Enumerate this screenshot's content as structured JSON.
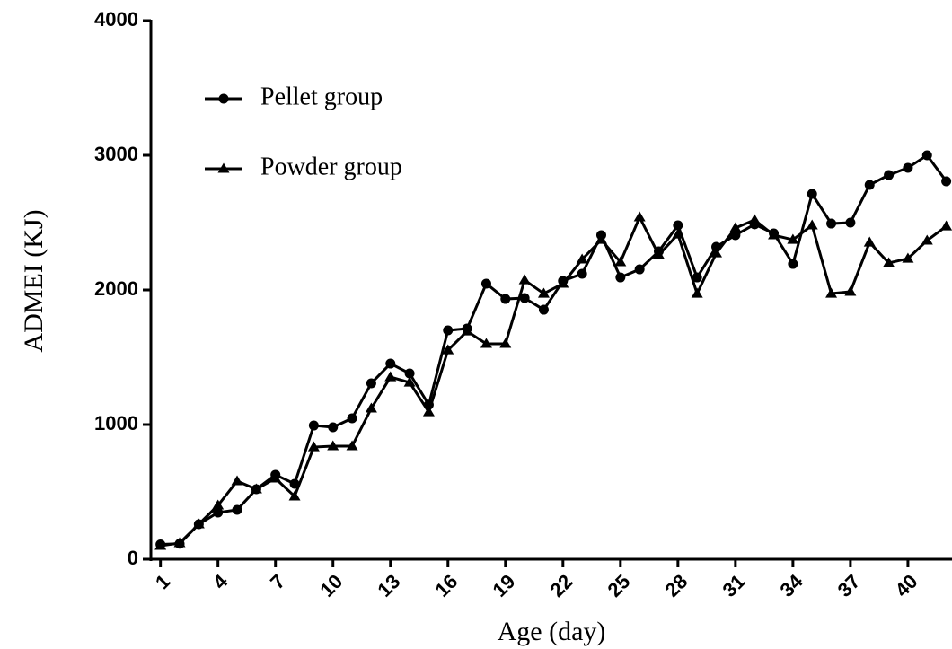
{
  "chart_data": {
    "type": "line",
    "x_label": "Age (day)",
    "y_label": "ADMEI (KJ)",
    "x": [
      1,
      2,
      3,
      4,
      5,
      6,
      7,
      8,
      9,
      10,
      11,
      12,
      13,
      14,
      15,
      16,
      17,
      18,
      19,
      20,
      21,
      22,
      23,
      24,
      25,
      26,
      27,
      28,
      29,
      30,
      31,
      32,
      33,
      34,
      35,
      36,
      37,
      38,
      39,
      40,
      41,
      42
    ],
    "series": [
      {
        "name": "Pellet group",
        "color": "#000000",
        "marker": "circle",
        "values": [
          110,
          115,
          260,
          347,
          367,
          520,
          627,
          560,
          993,
          980,
          1047,
          1307,
          1453,
          1380,
          1147,
          1700,
          1713,
          2047,
          1933,
          1940,
          1853,
          2067,
          2120,
          2407,
          2093,
          2153,
          2287,
          2480,
          2093,
          2320,
          2407,
          2487,
          2420,
          2193,
          2713,
          2493,
          2500,
          2780,
          2853,
          2907,
          3000,
          2807
        ]
      },
      {
        "name": "Powder group",
        "color": "#000000",
        "marker": "triangle",
        "values": [
          100,
          120,
          260,
          400,
          580,
          520,
          600,
          467,
          833,
          840,
          840,
          1120,
          1353,
          1313,
          1093,
          1553,
          1693,
          1600,
          1600,
          2073,
          1973,
          2047,
          2227,
          2373,
          2207,
          2540,
          2260,
          2413,
          1973,
          2273,
          2460,
          2520,
          2407,
          2373,
          2480,
          1973,
          1987,
          2353,
          2200,
          2233,
          2367,
          2473
        ]
      }
    ],
    "xlim": [
      0.5,
      42.3
    ],
    "ylim": [
      0,
      4000
    ],
    "xticks": [
      1,
      4,
      7,
      10,
      13,
      16,
      19,
      22,
      25,
      28,
      31,
      34,
      37,
      40
    ],
    "yticks": [
      0,
      1000,
      2000,
      3000,
      4000
    ]
  }
}
